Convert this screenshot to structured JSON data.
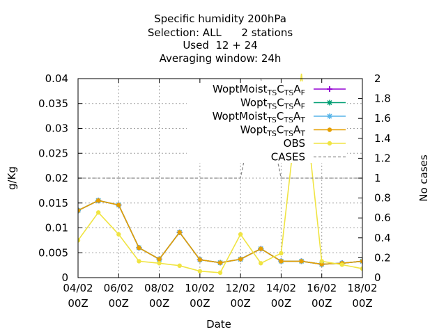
{
  "chart_data": {
    "type": "line",
    "title_lines": [
      "Specific humidity 200hPa",
      "Selection: ALL      2 stations",
      "Used  12 + 24",
      "Averaging window: 24h"
    ],
    "xlabel": "Date",
    "ylabel": "g/Kg",
    "y2label": "No cases",
    "x_ticks": [
      {
        "line1": "04/02",
        "line2": "00Z",
        "day": 4
      },
      {
        "line1": "06/02",
        "line2": "00Z",
        "day": 6
      },
      {
        "line1": "08/02",
        "line2": "00Z",
        "day": 8
      },
      {
        "line1": "10/02",
        "line2": "00Z",
        "day": 10
      },
      {
        "line1": "12/02",
        "line2": "00Z",
        "day": 12
      },
      {
        "line1": "14/02",
        "line2": "00Z",
        "day": 14
      },
      {
        "line1": "16/02",
        "line2": "00Z",
        "day": 16
      },
      {
        "line1": "18/02",
        "line2": "00Z",
        "day": 18
      }
    ],
    "y_ticks": [
      "0",
      "0.005",
      "0.01",
      "0.015",
      "0.02",
      "0.025",
      "0.03",
      "0.035",
      "0.04"
    ],
    "y2_ticks": [
      "0",
      "0.2",
      "0.4",
      "0.6",
      "0.8",
      "1",
      "1.2",
      "1.4",
      "1.6",
      "1.8",
      "2"
    ],
    "xlim": [
      4,
      18
    ],
    "ylim": [
      0,
      0.04
    ],
    "y2lim": [
      0,
      2
    ],
    "legend_position": "top-right",
    "series": [
      {
        "label_main": "WoptMoist",
        "label_sub1": "TS",
        "label_mid": "C",
        "label_sub2": "TS",
        "label_end": "A",
        "label_sub3": "F",
        "color": "#9400d3",
        "marker": "plus",
        "axis": "y",
        "x": [
          4,
          5,
          6,
          7,
          8,
          9,
          10,
          11,
          12,
          13,
          14,
          15,
          16,
          17,
          18
        ],
        "y": [
          0.0135,
          0.0155,
          0.0146,
          0.006,
          0.0037,
          0.0091,
          0.0036,
          0.003,
          0.0037,
          0.0058,
          0.0033,
          0.0033,
          0.0027,
          0.0029,
          0.0033
        ]
      },
      {
        "label_main": "Wopt",
        "label_sub1": "TS",
        "label_mid": "C",
        "label_sub2": "TS",
        "label_end": "A",
        "label_sub3": "F",
        "color": "#009e73",
        "marker": "star",
        "axis": "y",
        "x": [
          4,
          5,
          6,
          7,
          8,
          9,
          10,
          11,
          12,
          13,
          14,
          15,
          16,
          17,
          18
        ],
        "y": [
          0.0135,
          0.0155,
          0.0146,
          0.006,
          0.0037,
          0.0091,
          0.0036,
          0.003,
          0.0037,
          0.0058,
          0.0033,
          0.0033,
          0.0027,
          0.0029,
          0.0033
        ]
      },
      {
        "label_main": "WoptMoist",
        "label_sub1": "TS",
        "label_mid": "C",
        "label_sub2": "TS",
        "label_end": "A",
        "label_sub3": "T",
        "color": "#56b4e9",
        "marker": "star",
        "axis": "y",
        "x": [
          4,
          5,
          6,
          7,
          8,
          9,
          10,
          11,
          12,
          13,
          14,
          15,
          16,
          17,
          18
        ],
        "y": [
          0.0135,
          0.0155,
          0.0146,
          0.006,
          0.0037,
          0.0091,
          0.0036,
          0.003,
          0.0037,
          0.0058,
          0.0033,
          0.0033,
          0.0027,
          0.0029,
          0.0033
        ]
      },
      {
        "label_main": "Wopt",
        "label_sub1": "TS",
        "label_mid": "C",
        "label_sub2": "TS",
        "label_end": "A",
        "label_sub3": "T",
        "color": "#e69f00",
        "marker": "dot",
        "axis": "y",
        "x": [
          4,
          5,
          6,
          7,
          8,
          9,
          10,
          11,
          12,
          13,
          14,
          15,
          16,
          17,
          18
        ],
        "y": [
          0.0135,
          0.0155,
          0.0146,
          0.006,
          0.0037,
          0.0091,
          0.0036,
          0.003,
          0.0037,
          0.0058,
          0.0033,
          0.0033,
          0.0027,
          0.0029,
          0.0033
        ]
      },
      {
        "label_main": "OBS",
        "label_sub1": "",
        "label_mid": "",
        "label_sub2": "",
        "label_end": "",
        "label_sub3": "",
        "color": "#f0e442",
        "marker": "dot",
        "axis": "y",
        "x": [
          4,
          5,
          6,
          7,
          8,
          9,
          10,
          11,
          12,
          13,
          14,
          15,
          16,
          17,
          18
        ],
        "y": [
          0.0075,
          0.0131,
          0.0087,
          0.0033,
          0.0029,
          0.0024,
          0.0013,
          0.001,
          0.0087,
          0.0029,
          0.0049,
          0.041,
          0.0033,
          0.0026,
          0.0018
        ]
      },
      {
        "label_main": "CASES",
        "label_sub1": "",
        "label_mid": "",
        "label_sub2": "",
        "label_end": "",
        "label_sub3": "",
        "color": "#888888",
        "marker": "none",
        "dashed": true,
        "axis": "y2",
        "x": [
          4,
          12,
          13,
          14,
          18
        ],
        "y": [
          1,
          1,
          2,
          1,
          1
        ]
      }
    ]
  }
}
